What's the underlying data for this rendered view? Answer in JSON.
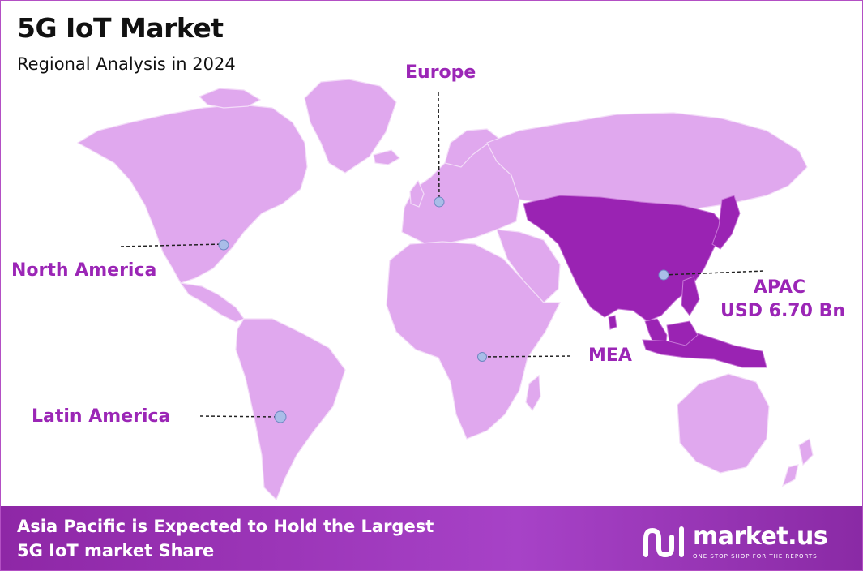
{
  "header": {
    "title": "5G IoT Market",
    "subtitle": "Regional Analysis in 2024"
  },
  "regions": [
    {
      "name": "North America",
      "highlighted": false
    },
    {
      "name": "Europe",
      "highlighted": false
    },
    {
      "name": "APAC",
      "value": "USD 6.70 Bn",
      "highlighted": true
    },
    {
      "name": "MEA",
      "highlighted": false
    },
    {
      "name": "Latin America",
      "highlighted": false
    }
  ],
  "colors": {
    "land": "#e0a8ee",
    "highlight": "#9a23b3",
    "label": "#9b26b6",
    "marker": "#a9bde8",
    "footer": "#9a34b6"
  },
  "footer": {
    "line1": "Asia Pacific is Expected to Hold the Largest",
    "line2": "5G IoT market Share"
  },
  "brand": {
    "name": "market.us",
    "tagline": "ONE STOP SHOP FOR THE REPORTS"
  }
}
